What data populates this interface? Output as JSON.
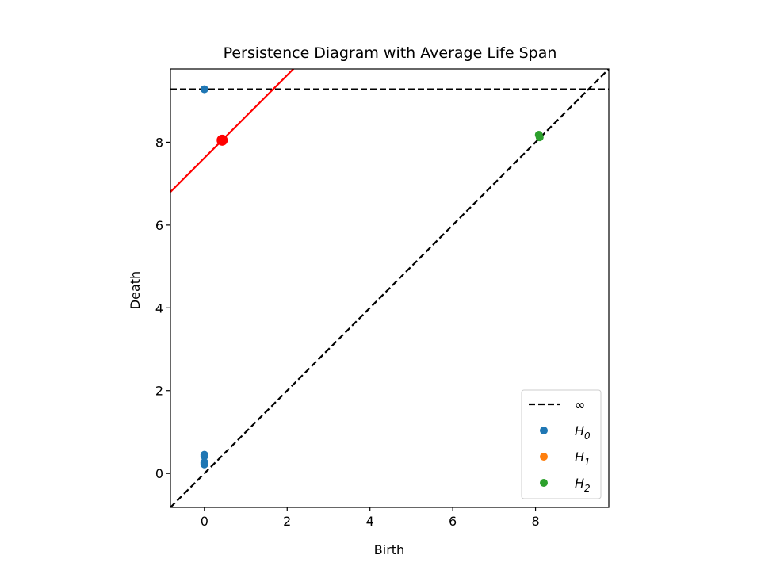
{
  "chart_data": {
    "type": "scatter",
    "title": "Persistence Diagram with Average Life Span",
    "xlabel": "Birth",
    "ylabel": "Death",
    "xlim": [
      -0.82,
      9.77
    ],
    "ylim": [
      -0.82,
      9.77
    ],
    "xticks": [
      0,
      2,
      4,
      6,
      8
    ],
    "yticks": [
      0,
      2,
      4,
      6,
      8
    ],
    "grid": false,
    "legend_position": "bottom-right",
    "infinity_value": 9.28,
    "legend": [
      {
        "label": "∞",
        "type": "line",
        "style": "dashed",
        "color": "#000000"
      },
      {
        "label": "H",
        "subscript": "0",
        "type": "marker",
        "color": "#1f77b4"
      },
      {
        "label": "H",
        "subscript": "1",
        "type": "marker",
        "color": "#ff7f0e"
      },
      {
        "label": "H",
        "subscript": "2",
        "type": "marker",
        "color": "#2ca02c"
      }
    ],
    "series": [
      {
        "name": "H0",
        "color": "#1f77b4",
        "points": [
          {
            "birth": 0,
            "death": 0.22
          },
          {
            "birth": 0,
            "death": 0.25
          },
          {
            "birth": 0,
            "death": 0.27
          },
          {
            "birth": 0,
            "death": 0.42
          },
          {
            "birth": 0,
            "death": 0.45
          },
          {
            "birth": 0,
            "death": 9.28
          }
        ]
      },
      {
        "name": "H1",
        "color": "#ff7f0e",
        "points": []
      },
      {
        "name": "H2",
        "color": "#2ca02c",
        "points": [
          {
            "birth": 8.08,
            "death": 8.18
          },
          {
            "birth": 8.1,
            "death": 8.12
          }
        ]
      }
    ],
    "average_point": {
      "birth": 0.43,
      "death": 8.05,
      "color": "#ff0000"
    },
    "average_line": {
      "slope": 1,
      "intercept": 7.62,
      "color": "#ff0000"
    },
    "diagonal_line": {
      "slope": 1,
      "intercept": 0,
      "style": "dashed",
      "color": "#000000"
    }
  }
}
